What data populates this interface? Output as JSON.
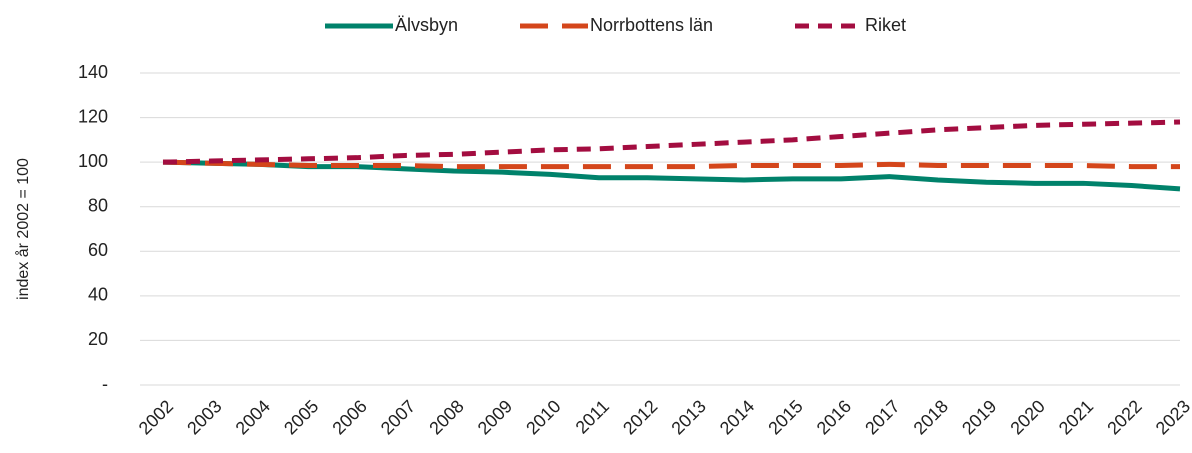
{
  "chart_data": {
    "type": "line",
    "ylabel": "index år 2002 = 100",
    "categories": [
      "2002",
      "2003",
      "2004",
      "2005",
      "2006",
      "2007",
      "2008",
      "2009",
      "2010",
      "2011",
      "2012",
      "2013",
      "2014",
      "2015",
      "2016",
      "2017",
      "2018",
      "2019",
      "2020",
      "2021",
      "2022",
      "2023"
    ],
    "series": [
      {
        "name": "Älvsbyn",
        "color": "#00826b",
        "values": [
          100,
          99.5,
          99,
          98,
          98,
          97,
          96,
          95.5,
          94.5,
          93,
          93,
          92.5,
          92,
          92.5,
          92.5,
          93.5,
          92,
          91,
          90.5,
          90.5,
          89.5,
          88
        ]
      },
      {
        "name": "Norrbottens län",
        "color": "#d4461b",
        "values": [
          100,
          99.5,
          99,
          98.5,
          98.5,
          98.5,
          98,
          98,
          98,
          98,
          98,
          98,
          98.5,
          98.5,
          98.5,
          99,
          98.5,
          98.5,
          98.5,
          98.5,
          98,
          98
        ]
      },
      {
        "name": "Riket",
        "color": "#a30d40",
        "values": [
          100,
          100.5,
          101,
          101.5,
          102,
          103,
          103.5,
          104.5,
          105.5,
          106,
          107,
          108,
          109,
          110,
          111.5,
          113,
          114.5,
          115.5,
          116.5,
          117,
          117.5,
          118
        ]
      }
    ],
    "ylim": [
      0,
      140
    ],
    "yticks": [
      {
        "value": 0,
        "label": "-"
      },
      20,
      40,
      60,
      80,
      100,
      120,
      140
    ],
    "grid": true,
    "legend": "top"
  }
}
